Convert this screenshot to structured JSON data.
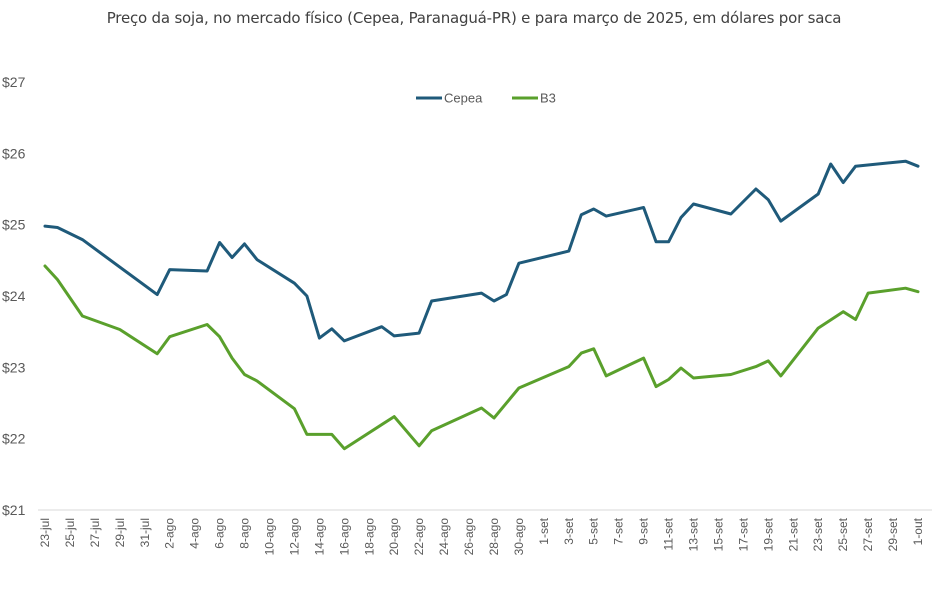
{
  "chart_data": {
    "type": "line",
    "title": "Preço da soja, no mercado físico (Cepea, Paranaguá-PR) e para março de 2025, em dólares por saca",
    "xlabel": "",
    "ylabel": "",
    "ylim": [
      21,
      27
    ],
    "y_ticks": [
      "$21",
      "$22",
      "$23",
      "$24",
      "$25",
      "$26",
      "$27"
    ],
    "y_tick_values": [
      21,
      22,
      23,
      24,
      25,
      26,
      27
    ],
    "x_start": "2024-07-23",
    "x_end": "2024-10-01",
    "x_tick_labels": [
      "23-jul",
      "25-jul",
      "27-jul",
      "29-jul",
      "31-jul",
      "2-ago",
      "4-ago",
      "6-ago",
      "8-ago",
      "10-ago",
      "12-ago",
      "14-ago",
      "16-ago",
      "18-ago",
      "20-ago",
      "22-ago",
      "24-ago",
      "26-ago",
      "28-ago",
      "30-ago",
      "1-set",
      "3-set",
      "5-set",
      "7-set",
      "9-set",
      "11-set",
      "13-set",
      "15-set",
      "17-set",
      "19-set",
      "21-set",
      "23-set",
      "25-set",
      "27-set",
      "29-set",
      "1-out"
    ],
    "grid": false,
    "legend_position": "top-center",
    "series": [
      {
        "name": "Cepea",
        "color": "#1f5a7a",
        "x": [
          "2024-07-23",
          "2024-07-24",
          "2024-07-26",
          "2024-08-01",
          "2024-08-02",
          "2024-08-05",
          "2024-08-06",
          "2024-08-07",
          "2024-08-08",
          "2024-08-09",
          "2024-08-12",
          "2024-08-13",
          "2024-08-14",
          "2024-08-15",
          "2024-08-16",
          "2024-08-19",
          "2024-08-20",
          "2024-08-22",
          "2024-08-23",
          "2024-08-27",
          "2024-08-28",
          "2024-08-29",
          "2024-08-30",
          "2024-09-03",
          "2024-09-04",
          "2024-09-05",
          "2024-09-06",
          "2024-09-09",
          "2024-09-10",
          "2024-09-11",
          "2024-09-12",
          "2024-09-13",
          "2024-09-16",
          "2024-09-18",
          "2024-09-19",
          "2024-09-20",
          "2024-09-23",
          "2024-09-24",
          "2024-09-25",
          "2024-09-26",
          "2024-09-30",
          "2024-10-01"
        ],
        "values": [
          24.98,
          24.96,
          24.79,
          24.02,
          24.37,
          24.35,
          24.75,
          24.54,
          24.73,
          24.51,
          24.18,
          24.0,
          23.41,
          23.54,
          23.37,
          23.57,
          23.44,
          23.48,
          23.93,
          24.04,
          23.93,
          24.02,
          24.46,
          24.63,
          25.14,
          25.22,
          25.12,
          25.24,
          24.76,
          24.76,
          25.1,
          25.29,
          25.15,
          25.5,
          25.35,
          25.05,
          25.43,
          25.85,
          25.59,
          25.82,
          25.89,
          25.82
        ]
      },
      {
        "name": "B3",
        "color": "#5aa02c",
        "x": [
          "2024-07-23",
          "2024-07-24",
          "2024-07-26",
          "2024-07-29",
          "2024-08-01",
          "2024-08-02",
          "2024-08-05",
          "2024-08-06",
          "2024-08-07",
          "2024-08-08",
          "2024-08-09",
          "2024-08-12",
          "2024-08-13",
          "2024-08-15",
          "2024-08-16",
          "2024-08-20",
          "2024-08-22",
          "2024-08-23",
          "2024-08-27",
          "2024-08-28",
          "2024-08-30",
          "2024-09-03",
          "2024-09-04",
          "2024-09-05",
          "2024-09-06",
          "2024-09-09",
          "2024-09-10",
          "2024-09-11",
          "2024-09-12",
          "2024-09-13",
          "2024-09-16",
          "2024-09-18",
          "2024-09-19",
          "2024-09-20",
          "2024-09-23",
          "2024-09-25",
          "2024-09-26",
          "2024-09-27",
          "2024-09-30",
          "2024-10-01"
        ],
        "values": [
          24.42,
          24.23,
          23.72,
          23.53,
          23.19,
          23.43,
          23.6,
          23.43,
          23.13,
          22.9,
          22.81,
          22.42,
          22.06,
          22.06,
          21.86,
          22.31,
          21.9,
          22.11,
          22.43,
          22.29,
          22.71,
          23.01,
          23.2,
          23.26,
          22.88,
          23.13,
          22.73,
          22.83,
          22.99,
          22.85,
          22.9,
          23.01,
          23.09,
          22.88,
          23.55,
          23.78,
          23.67,
          24.04,
          24.11,
          24.06
        ]
      }
    ]
  }
}
